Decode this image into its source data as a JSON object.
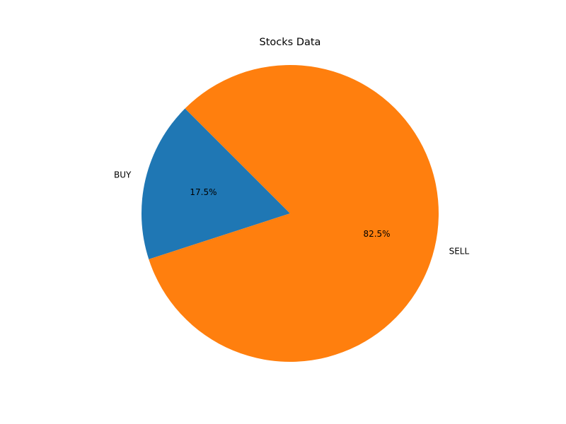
{
  "chart_data": {
    "type": "pie",
    "title": "Stocks Data",
    "categories": [
      "BUY",
      "SELL"
    ],
    "values": [
      17.5,
      82.5
    ],
    "value_labels": [
      "17.5%",
      "82.5%"
    ],
    "colors": [
      "#1f77b4",
      "#ff7f0e"
    ],
    "legend": "none"
  }
}
